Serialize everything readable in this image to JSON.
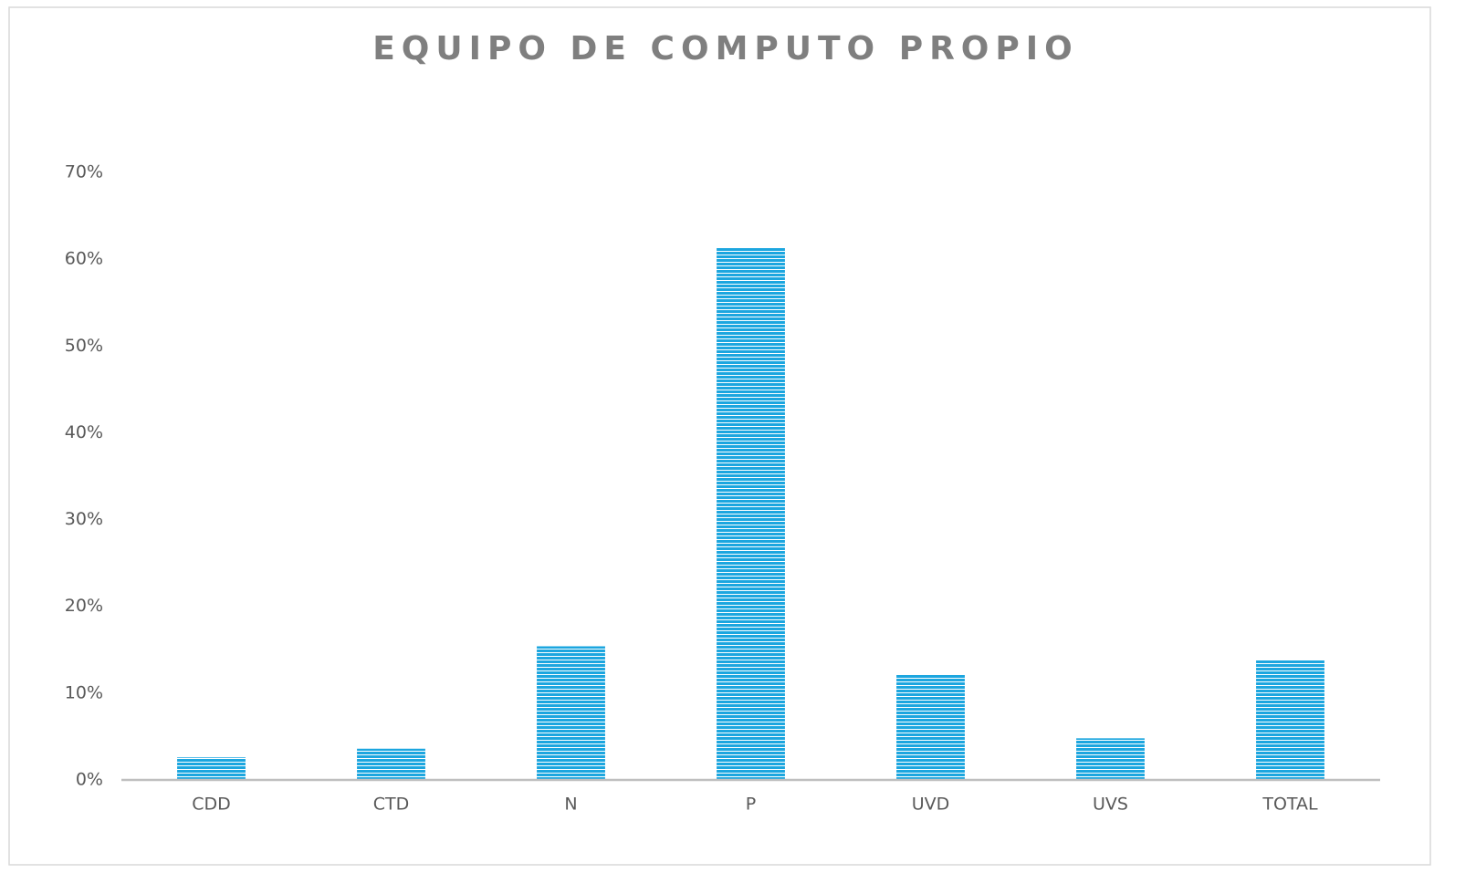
{
  "chart_data": {
    "type": "bar",
    "title": "EQUIPO DE COMPUTO PROPIO",
    "categories": [
      "CDD",
      "CTD",
      "N",
      "P",
      "UVD",
      "UVS",
      "TOTAL"
    ],
    "values": [
      2.6,
      3.6,
      15.4,
      61.3,
      12.1,
      4.8,
      13.8
    ],
    "color": "#1ca6df",
    "ylim": [
      0,
      70
    ],
    "yticks": [
      {
        "value": 0,
        "label": "0%"
      },
      {
        "value": 10,
        "label": "10%"
      },
      {
        "value": 20,
        "label": "20%"
      },
      {
        "value": 30,
        "label": "30%"
      },
      {
        "value": 40,
        "label": "40%"
      },
      {
        "value": 50,
        "label": "50%"
      },
      {
        "value": 60,
        "label": "60%"
      },
      {
        "value": 70,
        "label": "70%"
      }
    ],
    "grid": false
  }
}
